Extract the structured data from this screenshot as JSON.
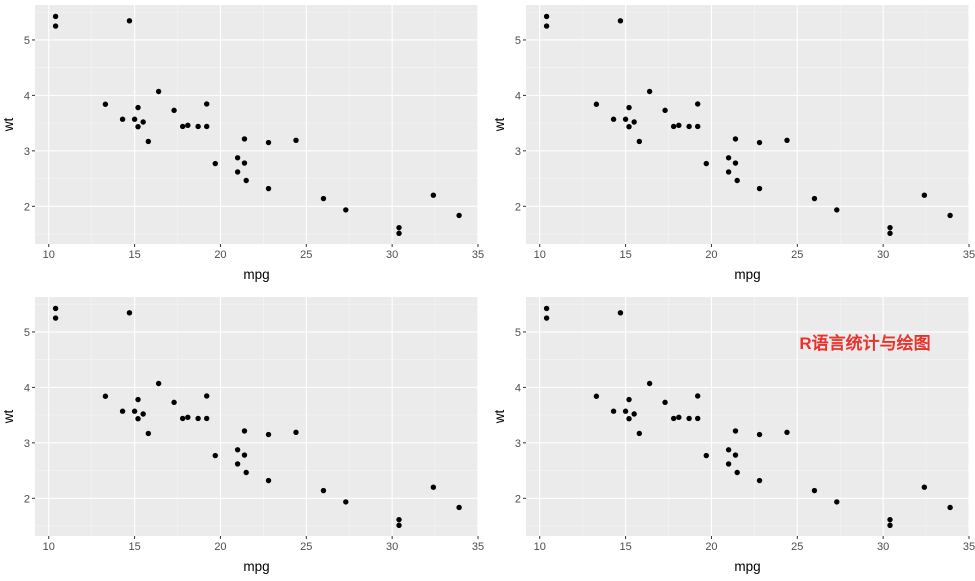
{
  "watermark": "R语言统计与绘图",
  "colors": {
    "panel_bg": "#ebebeb",
    "grid_major": "#ffffff",
    "grid_minor": "#f5f5f5",
    "point": "#000000",
    "tick": "#333333",
    "tick_label": "#4d4d4d",
    "watermark": "#e8332c"
  },
  "chart_data": [
    {
      "type": "scatter",
      "title": "",
      "xlabel": "mpg",
      "ylabel": "wt",
      "xlim": [
        9.2,
        35.0
      ],
      "ylim": [
        1.32,
        5.63
      ],
      "xticks": [
        10,
        15,
        20,
        25,
        30,
        35
      ],
      "xtick_labels": [
        "10",
        "15",
        "20",
        "25",
        "30",
        "35"
      ],
      "yticks": [
        2,
        3,
        4,
        5
      ],
      "ytick_labels": [
        "2",
        "3",
        "4",
        "5"
      ],
      "grid": true,
      "x": [
        21.0,
        21.0,
        22.8,
        21.4,
        18.7,
        18.1,
        14.3,
        24.4,
        22.8,
        19.2,
        17.8,
        16.4,
        17.3,
        15.2,
        10.4,
        10.4,
        14.7,
        32.4,
        30.4,
        33.9,
        21.5,
        15.5,
        15.2,
        13.3,
        19.2,
        27.3,
        26.0,
        30.4,
        15.8,
        19.7,
        15.0,
        21.4
      ],
      "y": [
        2.62,
        2.875,
        2.32,
        3.215,
        3.44,
        3.46,
        3.57,
        3.19,
        3.15,
        3.44,
        3.44,
        4.07,
        3.73,
        3.78,
        5.25,
        5.424,
        5.345,
        2.2,
        1.615,
        1.835,
        2.465,
        3.52,
        3.435,
        3.84,
        3.845,
        1.935,
        2.14,
        1.513,
        3.17,
        2.77,
        3.57,
        2.78
      ]
    },
    {
      "type": "scatter",
      "title": "",
      "xlabel": "mpg",
      "ylabel": "wt",
      "xlim": [
        9.2,
        35.0
      ],
      "ylim": [
        1.32,
        5.63
      ],
      "xticks": [
        10,
        15,
        20,
        25,
        30,
        35
      ],
      "xtick_labels": [
        "10",
        "15",
        "20",
        "25",
        "30",
        "35"
      ],
      "yticks": [
        2,
        3,
        4,
        5
      ],
      "ytick_labels": [
        "2",
        "3",
        "4",
        "5"
      ],
      "grid": true,
      "x": [
        21.0,
        21.0,
        22.8,
        21.4,
        18.7,
        18.1,
        14.3,
        24.4,
        22.8,
        19.2,
        17.8,
        16.4,
        17.3,
        15.2,
        10.4,
        10.4,
        14.7,
        32.4,
        30.4,
        33.9,
        21.5,
        15.5,
        15.2,
        13.3,
        19.2,
        27.3,
        26.0,
        30.4,
        15.8,
        19.7,
        15.0,
        21.4
      ],
      "y": [
        2.62,
        2.875,
        2.32,
        3.215,
        3.44,
        3.46,
        3.57,
        3.19,
        3.15,
        3.44,
        3.44,
        4.07,
        3.73,
        3.78,
        5.25,
        5.424,
        5.345,
        2.2,
        1.615,
        1.835,
        2.465,
        3.52,
        3.435,
        3.84,
        3.845,
        1.935,
        2.14,
        1.513,
        3.17,
        2.77,
        3.57,
        2.78
      ]
    },
    {
      "type": "scatter",
      "title": "",
      "xlabel": "mpg",
      "ylabel": "wt",
      "xlim": [
        9.2,
        35.0
      ],
      "ylim": [
        1.32,
        5.63
      ],
      "xticks": [
        10,
        15,
        20,
        25,
        30,
        35
      ],
      "xtick_labels": [
        "10",
        "15",
        "20",
        "25",
        "30",
        "35"
      ],
      "yticks": [
        2,
        3,
        4,
        5
      ],
      "ytick_labels": [
        "2",
        "3",
        "4",
        "5"
      ],
      "grid": true,
      "x": [
        21.0,
        21.0,
        22.8,
        21.4,
        18.7,
        18.1,
        14.3,
        24.4,
        22.8,
        19.2,
        17.8,
        16.4,
        17.3,
        15.2,
        10.4,
        10.4,
        14.7,
        32.4,
        30.4,
        33.9,
        21.5,
        15.5,
        15.2,
        13.3,
        19.2,
        27.3,
        26.0,
        30.4,
        15.8,
        19.7,
        15.0,
        21.4
      ],
      "y": [
        2.62,
        2.875,
        2.32,
        3.215,
        3.44,
        3.46,
        3.57,
        3.19,
        3.15,
        3.44,
        3.44,
        4.07,
        3.73,
        3.78,
        5.25,
        5.424,
        5.345,
        2.2,
        1.615,
        1.835,
        2.465,
        3.52,
        3.435,
        3.84,
        3.845,
        1.935,
        2.14,
        1.513,
        3.17,
        2.77,
        3.57,
        2.78
      ]
    },
    {
      "type": "scatter",
      "title": "",
      "xlabel": "mpg",
      "ylabel": "wt",
      "xlim": [
        9.2,
        35.0
      ],
      "ylim": [
        1.32,
        5.63
      ],
      "xticks": [
        10,
        15,
        20,
        25,
        30,
        35
      ],
      "xtick_labels": [
        "10",
        "15",
        "20",
        "25",
        "30",
        "35"
      ],
      "yticks": [
        2,
        3,
        4,
        5
      ],
      "ytick_labels": [
        "2",
        "3",
        "4",
        "5"
      ],
      "grid": true,
      "x": [
        21.0,
        21.0,
        22.8,
        21.4,
        18.7,
        18.1,
        14.3,
        24.4,
        22.8,
        19.2,
        17.8,
        16.4,
        17.3,
        15.2,
        10.4,
        10.4,
        14.7,
        32.4,
        30.4,
        33.9,
        21.5,
        15.5,
        15.2,
        13.3,
        19.2,
        27.3,
        26.0,
        30.4,
        15.8,
        19.7,
        15.0,
        21.4
      ],
      "y": [
        2.62,
        2.875,
        2.32,
        3.215,
        3.44,
        3.46,
        3.57,
        3.19,
        3.15,
        3.44,
        3.44,
        4.07,
        3.73,
        3.78,
        5.25,
        5.424,
        5.345,
        2.2,
        1.615,
        1.835,
        2.465,
        3.52,
        3.435,
        3.84,
        3.845,
        1.935,
        2.14,
        1.513,
        3.17,
        2.77,
        3.57,
        2.78
      ]
    }
  ]
}
